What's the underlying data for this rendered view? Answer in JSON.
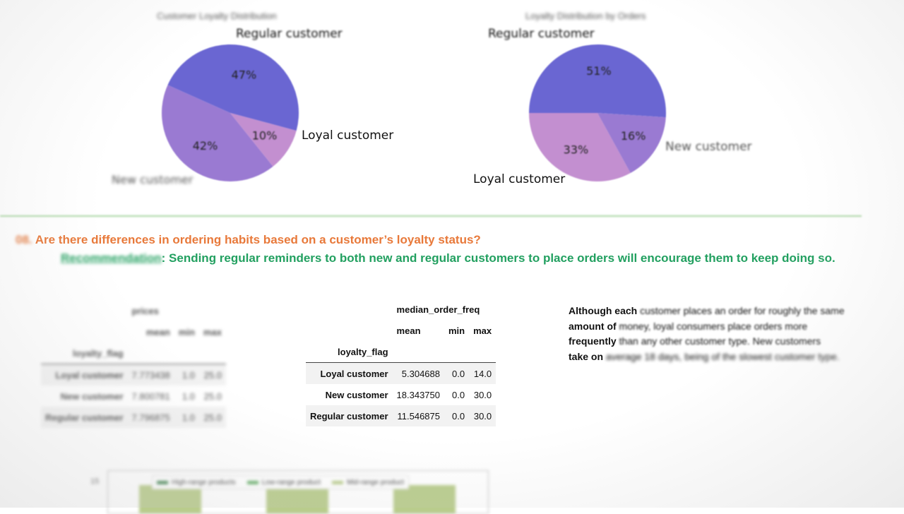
{
  "chart_data": [
    {
      "type": "pie",
      "title": "Customer Loyalty Distribution",
      "slices": [
        {
          "label": "Regular customer",
          "value": 47,
          "pct_label": "47%",
          "color": "#6a66d2"
        },
        {
          "label": "New customer",
          "value": 42,
          "pct_label": "42%",
          "color": "#9a7ad2"
        },
        {
          "label": "Loyal customer",
          "value": 10,
          "pct_label": "10%",
          "color": "#c38fd0"
        }
      ]
    },
    {
      "type": "pie",
      "title": "Loyalty Distribution by Orders",
      "slices": [
        {
          "label": "Regular customer",
          "value": 51,
          "pct_label": "51%",
          "color": "#6a66d2"
        },
        {
          "label": "New customer",
          "value": 16,
          "pct_label": "16%",
          "color": "#9a7ad2"
        },
        {
          "label": "Loyal customer",
          "value": 33,
          "pct_label": "33%",
          "color": "#c38fd0"
        }
      ]
    },
    {
      "type": "table",
      "column_group": "prices",
      "columns": [
        "mean",
        "min",
        "max"
      ],
      "index_name": "loyalty_flag",
      "rows": [
        {
          "label": "Loyal customer",
          "values": [
            "7.773438",
            "1.0",
            "25.0"
          ]
        },
        {
          "label": "New customer",
          "values": [
            "7.800781",
            "1.0",
            "25.0"
          ]
        },
        {
          "label": "Regular customer",
          "values": [
            "7.796875",
            "1.0",
            "25.0"
          ]
        }
      ]
    },
    {
      "type": "table",
      "column_group": "median_order_freq",
      "columns": [
        "mean",
        "min",
        "max"
      ],
      "index_name": "loyalty_flag",
      "rows": [
        {
          "label": "Loyal customer",
          "values": [
            "5.304688",
            "0.0",
            "14.0"
          ]
        },
        {
          "label": "New customer",
          "values": [
            "18.343750",
            "0.0",
            "30.0"
          ]
        },
        {
          "label": "Regular customer",
          "values": [
            "11.546875",
            "0.0",
            "30.0"
          ]
        }
      ]
    },
    {
      "type": "bar",
      "y_tick_visible": "15",
      "legend": [
        {
          "label": "High-range products",
          "color": "#4c8a5a"
        },
        {
          "label": "Low-range product",
          "color": "#6ab06c"
        },
        {
          "label": "Mid-range product",
          "color": "#b9cc8c"
        }
      ]
    }
  ],
  "section": {
    "question_number": "08.",
    "question": "Are there differences in ordering habits based on a customer’s loyalty status?",
    "recommendation_label": "Recommendation",
    "recommendation_text": ": Sending regular reminders to both new and regular customers to place orders will encourage them to keep doing so."
  },
  "side_text": {
    "p1_strong1": "Although each",
    "p1_rest1": " customer places an order for roughly the same",
    "p2_strong": "amount of",
    "p2_rest": " money, loyal consumers place orders more",
    "p3_strong": "frequently",
    "p3_rest": " than any other customer type. New customers",
    "p4_strong": "take on",
    "p4_rest": " average 18 days, being of the slowest customer type."
  }
}
